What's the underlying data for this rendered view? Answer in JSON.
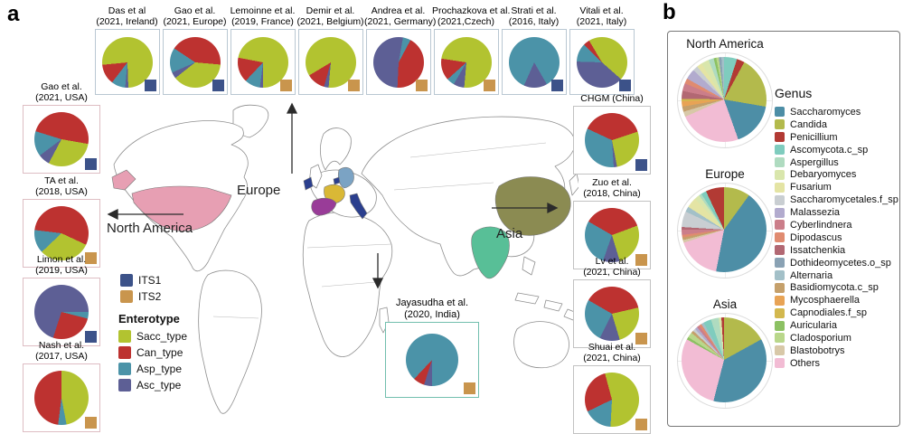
{
  "figure": {
    "panel_a_label": "a",
    "panel_b_label": "b"
  },
  "panel_a": {
    "map": {
      "labels": {
        "europe": "Europe",
        "north_america": "North America",
        "asia": "Asia"
      },
      "country_colors": {
        "usa": "#e79fb3",
        "ireland": "#2b3f8e",
        "belgium": "#2b3f8e",
        "france": "#d9b836",
        "germany": "#7ba3c4",
        "spain": "#993c98",
        "italy": "#2b3f8e",
        "china": "#8b8b52",
        "india": "#58bf97"
      }
    },
    "enterotype_title": "Enterotype",
    "box_border_colors": {
      "top": "#b9c7d2",
      "left": "#debdc3",
      "right": "#c2c2c2",
      "india": "#72bfae"
    }
  },
  "panel_b": {
    "genus_title": "Genus"
  },
  "chart_data": {
    "type": "pie",
    "its_colors": {
      "ITS1": "#3c5289",
      "ITS2": "#c9954d"
    },
    "enterotype_colors": {
      "Sacc_type": "#b2c330",
      "Can_type": "#bd3230",
      "Asp_type": "#4b93a8",
      "Asc_type": "#5d5f95"
    },
    "genus_colors": {
      "Saccharomyces": "#4d8ea6",
      "Candida": "#b3ba4c",
      "Penicillium": "#b23a34",
      "Ascomycota.c_sp": "#7fccbe",
      "Aspergillus": "#afdbc0",
      "Debaryomyces": "#d9e6ac",
      "Fusarium": "#e4e4a4",
      "Saccharomycetales.f_sp": "#c9ced2",
      "Malassezia": "#b2abce",
      "Cyberlindnera": "#cb7e8a",
      "Dipodascus": "#e08b70",
      "Issatchenkia": "#b26873",
      "Dothideomycetes.o_sp": "#8aa2b4",
      "Alternaria": "#a3c0c8",
      "Basidiomycota.c_sp": "#c5a06b",
      "Mycosphaerella": "#e8a355",
      "Capnodiales.f_sp": "#d3b84e",
      "Auricularia": "#8cc163",
      "Cladosporium": "#b9d78b",
      "Blastobotrys": "#d8c8a8",
      "Others": "#f2bcd4"
    },
    "study_pies": [
      {
        "name": "Das et al",
        "detail": "(2021, Ireland)",
        "region": "top",
        "its": "ITS1",
        "from": 178,
        "slices": [
          [
            "Asc_type",
            2
          ],
          [
            "Asp_type",
            9
          ],
          [
            "Can_type",
            13
          ],
          [
            "Sacc_type",
            76
          ]
        ]
      },
      {
        "name": "Gao et al.",
        "detail": "(2021, Europe)",
        "region": "top",
        "its": "ITS1",
        "from": 95,
        "slices": [
          [
            "Sacc_type",
            38
          ],
          [
            "Asc_type",
            4
          ],
          [
            "Asp_type",
            16
          ],
          [
            "Can_type",
            42
          ]
        ]
      },
      {
        "name": "Lemoinne et al.",
        "detail": "(2019, France)",
        "region": "top",
        "its": "ITS2",
        "from": 180,
        "slices": [
          [
            "Asc_type",
            2
          ],
          [
            "Asp_type",
            10
          ],
          [
            "Can_type",
            16
          ],
          [
            "Sacc_type",
            72
          ]
        ]
      },
      {
        "name": "Demir et al.",
        "detail": "(2021, Belgium)",
        "region": "top",
        "its": "ITS2",
        "from": 185,
        "slices": [
          [
            "Asc_type",
            3
          ],
          [
            "Can_type",
            12
          ],
          [
            "Sacc_type",
            85
          ]
        ]
      },
      {
        "name": "Andrea et al.",
        "detail": "(2021, Germany)",
        "region": "top",
        "its": "ITS2",
        "from": 10,
        "slices": [
          [
            "Asp_type",
            5
          ],
          [
            "Can_type",
            43
          ],
          [
            "Asc_type",
            52
          ]
        ]
      },
      {
        "name": "Prochazkova et al.",
        "detail": "(2021,Czech)",
        "region": "top",
        "its": "ITS2",
        "from": 185,
        "slices": [
          [
            "Asc_type",
            7
          ],
          [
            "Asp_type",
            5
          ],
          [
            "Can_type",
            14
          ],
          [
            "Sacc_type",
            74
          ]
        ]
      },
      {
        "name": "Strati et al.",
        "detail": "(2016, Italy)",
        "region": "top",
        "its": "ITS1",
        "from": 150,
        "slices": [
          [
            "Asc_type",
            15
          ],
          [
            "Asp_type",
            85
          ]
        ]
      },
      {
        "name": "Vitali et al.",
        "detail": "(2021, Italy)",
        "region": "top",
        "its": "ITS1",
        "from": 315,
        "slices": [
          [
            "Can_type",
            4
          ],
          [
            "Sacc_type",
            45
          ],
          [
            "Asc_type",
            39
          ],
          [
            "Asp_type",
            12
          ]
        ]
      },
      {
        "name": "Gao et al.",
        "detail": "(2021, USA)",
        "region": "left",
        "its": "ITS1",
        "from": 100,
        "slices": [
          [
            "Sacc_type",
            30
          ],
          [
            "Asc_type",
            7
          ],
          [
            "Asp_type",
            15
          ],
          [
            "Can_type",
            48
          ]
        ]
      },
      {
        "name": "TA et al.",
        "detail": "(2018, USA)",
        "region": "left",
        "its": "ITS2",
        "from": 115,
        "slices": [
          [
            "Sacc_type",
            31
          ],
          [
            "Asp_type",
            14
          ],
          [
            "Can_type",
            55
          ]
        ]
      },
      {
        "name": "Limon et al.",
        "detail": "(2019, USA)",
        "region": "left",
        "its": "ITS1",
        "from": 90,
        "slices": [
          [
            "Asp_type",
            4
          ],
          [
            "Can_type",
            26
          ],
          [
            "Asc_type",
            70
          ]
        ]
      },
      {
        "name": "Nash et al.",
        "detail": "(2017, USA)",
        "region": "left",
        "its": "ITS2",
        "from": 0,
        "slices": [
          [
            "Sacc_type",
            47
          ],
          [
            "Asp_type",
            5
          ],
          [
            "Can_type",
            48
          ]
        ]
      },
      {
        "name": "CHGM (China)",
        "detail": "",
        "region": "right",
        "its": "ITS1",
        "from": 295,
        "slices": [
          [
            "Can_type",
            38
          ],
          [
            "Sacc_type",
            27
          ],
          [
            "Asc_type",
            2
          ],
          [
            "Asp_type",
            33
          ]
        ]
      },
      {
        "name": "Zuo et al.",
        "detail": "(2018, China)",
        "region": "right",
        "its": "ITS2",
        "from": 300,
        "slices": [
          [
            "Can_type",
            36
          ],
          [
            "Sacc_type",
            26
          ],
          [
            "Asc_type",
            10
          ],
          [
            "Asp_type",
            28
          ]
        ]
      },
      {
        "name": "Lv et al.",
        "detail": "(2021, China)",
        "region": "right",
        "its": "ITS2",
        "from": 300,
        "slices": [
          [
            "Can_type",
            38
          ],
          [
            "Sacc_type",
            24
          ],
          [
            "Asc_type",
            12
          ],
          [
            "Asp_type",
            26
          ]
        ]
      },
      {
        "name": "Shuai et al.",
        "detail": "(2021, China)",
        "region": "right",
        "its": "ITS2",
        "from": 345,
        "slices": [
          [
            "Sacc_type",
            55
          ],
          [
            "Asp_type",
            17
          ],
          [
            "Can_type",
            28
          ]
        ]
      },
      {
        "name": "Jayasudha et al.",
        "detail": "(2020, India)",
        "region": "india",
        "its": "ITS2",
        "from": 180,
        "slices": [
          [
            "Asc_type",
            5
          ],
          [
            "Can_type",
            7
          ],
          [
            "Asp_type",
            88
          ]
        ]
      }
    ],
    "region_pies": [
      {
        "title": "North America",
        "from": 0,
        "slices": [
          [
            "Ascomycota.c_sp",
            5
          ],
          [
            "Penicillium",
            3
          ],
          [
            "Candida",
            20
          ],
          [
            "Saccharomyces",
            17
          ],
          [
            "Others",
            24
          ],
          [
            "Blastobotrys",
            2
          ],
          [
            "Basidiomycota.c_sp",
            2
          ],
          [
            "Mycosphaerella",
            2
          ],
          [
            "Capnodiales.f_sp",
            1
          ],
          [
            "Issatchenkia",
            3
          ],
          [
            "Cyberlindnera",
            3
          ],
          [
            "Dipodascus",
            2
          ],
          [
            "Malassezia",
            4
          ],
          [
            "Saccharomycetales.f_sp",
            2
          ],
          [
            "Fusarium",
            2
          ],
          [
            "Debaryomyces",
            3
          ],
          [
            "Aspergillus",
            2
          ],
          [
            "Auricularia",
            1
          ],
          [
            "Cladosporium",
            1
          ],
          [
            "Dothideomycetes.o_sp",
            1
          ],
          [
            "Alternaria",
            1
          ]
        ]
      },
      {
        "title": "Europe",
        "from": 0,
        "slices": [
          [
            "Candida",
            10
          ],
          [
            "Saccharomyces",
            43
          ],
          [
            "Others",
            17
          ],
          [
            "Blastobotrys",
            1
          ],
          [
            "Basidiomycota.c_sp",
            1
          ],
          [
            "Dipodascus",
            1
          ],
          [
            "Cyberlindnera",
            2
          ],
          [
            "Issatchenkia",
            1
          ],
          [
            "Saccharomycetales.f_sp",
            6
          ],
          [
            "Alternaria",
            2
          ],
          [
            "Fusarium",
            4
          ],
          [
            "Debaryomyces",
            2
          ],
          [
            "Aspergillus",
            1
          ],
          [
            "Ascomycota.c_sp",
            2
          ],
          [
            "Penicillium",
            7
          ]
        ]
      },
      {
        "title": "Asia",
        "from": 0,
        "slices": [
          [
            "Candida",
            17
          ],
          [
            "Saccharomyces",
            37
          ],
          [
            "Others",
            29
          ],
          [
            "Auricularia",
            1
          ],
          [
            "Cladosporium",
            2
          ],
          [
            "Basidiomycota.c_sp",
            1
          ],
          [
            "Saccharomycetales.f_sp",
            1
          ],
          [
            "Malassezia",
            1
          ],
          [
            "Cyberlindnera",
            1
          ],
          [
            "Dipodascus",
            1
          ],
          [
            "Alternaria",
            1
          ],
          [
            "Ascomycota.c_sp",
            3
          ],
          [
            "Aspergillus",
            3
          ],
          [
            "Debaryomyces",
            1
          ],
          [
            "Penicillium",
            1
          ]
        ]
      }
    ]
  }
}
